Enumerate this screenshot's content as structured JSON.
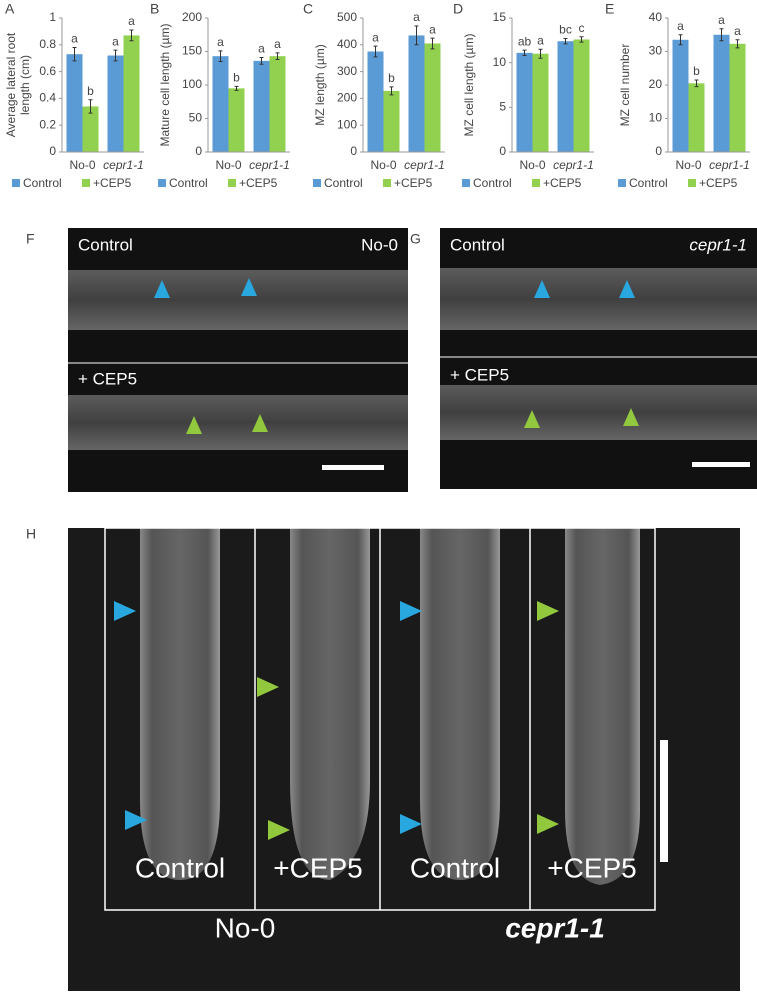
{
  "chart_data": [
    {
      "type": "bar",
      "panel": "A",
      "ylabel": [
        "Average lateral root",
        "length (cm)"
      ],
      "categories": [
        "No-0",
        "cepr1-1"
      ],
      "ylim": [
        0,
        1
      ],
      "yticks": [
        0,
        0.2,
        0.4,
        0.6,
        0.8,
        1
      ],
      "series": [
        {
          "name": "Control",
          "color": "#5b9bd5",
          "values": [
            0.73,
            0.72
          ],
          "errors": [
            0.05,
            0.04
          ],
          "letters": [
            "a",
            "a"
          ]
        },
        {
          "name": "+CEP5",
          "color": "#92d050",
          "values": [
            0.34,
            0.87
          ],
          "errors": [
            0.05,
            0.04
          ],
          "letters": [
            "b",
            "a"
          ]
        }
      ]
    },
    {
      "type": "bar",
      "panel": "B",
      "ylabel": [
        "Mature cell length (µm)"
      ],
      "categories": [
        "No-0",
        "cepr1-1"
      ],
      "ylim": [
        0,
        200
      ],
      "yticks": [
        0,
        50,
        100,
        150,
        200
      ],
      "series": [
        {
          "name": "Control",
          "color": "#5b9bd5",
          "values": [
            143,
            136
          ],
          "errors": [
            8,
            5
          ],
          "letters": [
            "a",
            "a"
          ]
        },
        {
          "name": "+CEP5",
          "color": "#92d050",
          "values": [
            95,
            143
          ],
          "errors": [
            3,
            5
          ],
          "letters": [
            "b",
            "a"
          ]
        }
      ]
    },
    {
      "type": "bar",
      "panel": "C",
      "ylabel": [
        "MZ length (µm)"
      ],
      "categories": [
        "No-0",
        "cepr1-1"
      ],
      "ylim": [
        0,
        500
      ],
      "yticks": [
        0,
        100,
        200,
        300,
        400,
        500
      ],
      "series": [
        {
          "name": "Control",
          "color": "#5b9bd5",
          "values": [
            375,
            435
          ],
          "errors": [
            20,
            35
          ],
          "letters": [
            "a",
            "a"
          ]
        },
        {
          "name": "+CEP5",
          "color": "#92d050",
          "values": [
            228,
            405
          ],
          "errors": [
            15,
            20
          ],
          "letters": [
            "b",
            "a"
          ]
        }
      ]
    },
    {
      "type": "bar",
      "panel": "D",
      "ylabel": [
        "MZ cell length (µm)"
      ],
      "categories": [
        "No-0",
        "cepr1-1"
      ],
      "ylim": [
        0,
        15
      ],
      "yticks": [
        0,
        5,
        10,
        15
      ],
      "series": [
        {
          "name": "Control",
          "color": "#5b9bd5",
          "values": [
            11.1,
            12.4
          ],
          "errors": [
            0.3,
            0.3
          ],
          "letters": [
            "ab",
            "bc"
          ]
        },
        {
          "name": "+CEP5",
          "color": "#92d050",
          "values": [
            11.0,
            12.6
          ],
          "errors": [
            0.5,
            0.3
          ],
          "letters": [
            "a",
            "c"
          ]
        }
      ]
    },
    {
      "type": "bar",
      "panel": "E",
      "ylabel": [
        "MZ cell number"
      ],
      "categories": [
        "No-0",
        "cepr1-1"
      ],
      "ylim": [
        0,
        40
      ],
      "yticks": [
        0,
        10,
        20,
        30,
        40
      ],
      "series": [
        {
          "name": "Control",
          "color": "#5b9bd5",
          "values": [
            33.5,
            35
          ],
          "errors": [
            1.5,
            1.8
          ],
          "letters": [
            "a",
            "a"
          ]
        },
        {
          "name": "+CEP5",
          "color": "#92d050",
          "values": [
            20.5,
            32.3
          ],
          "errors": [
            1,
            1.2
          ],
          "letters": [
            "b",
            "a"
          ]
        }
      ]
    }
  ],
  "images": {
    "F": {
      "panel": "F",
      "top_left": "Control",
      "top_right": "No-0",
      "bottom_left": "+ CEP5"
    },
    "G": {
      "panel": "G",
      "top_left": "Control",
      "top_right": "cepr1-1",
      "bottom_left": "+ CEP5"
    },
    "H": {
      "panel": "H",
      "columns": [
        "Control",
        "+CEP5",
        "Control",
        "+CEP5"
      ],
      "genotypes": [
        "No-0",
        "cepr1-1"
      ]
    }
  }
}
